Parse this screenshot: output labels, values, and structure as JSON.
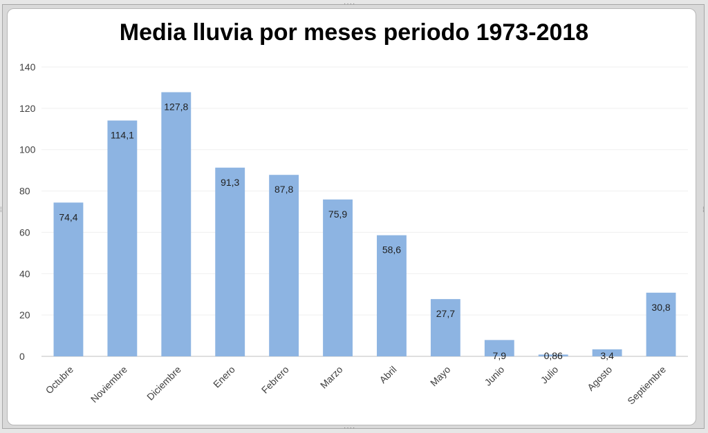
{
  "chart_data": {
    "type": "bar",
    "title": "Media lluvia por meses periodo 1973-2018",
    "xlabel": "",
    "ylabel": "",
    "categories": [
      "Octubre",
      "Noviembre",
      "Diciembre",
      "Enero",
      "Febrero",
      "Marzo",
      "Abril",
      "Mayo",
      "Junio",
      "Julio",
      "Agosto",
      "Septiembre"
    ],
    "values": [
      74.4,
      114.1,
      127.8,
      91.3,
      87.8,
      75.9,
      58.6,
      27.7,
      7.9,
      0.86,
      3.4,
      30.8
    ],
    "data_labels": [
      "74,4",
      "114,1",
      "127,8",
      "91,3",
      "87,8",
      "75,9",
      "58,6",
      "27,7",
      "7,9",
      "0,86",
      "3,4",
      "30,8"
    ],
    "ylim": [
      0,
      140
    ],
    "yticks": [
      "0",
      "20",
      "40",
      "60",
      "80",
      "100",
      "120",
      "140"
    ],
    "grid": true,
    "legend": "none",
    "bar_color": "#8db4e2"
  }
}
